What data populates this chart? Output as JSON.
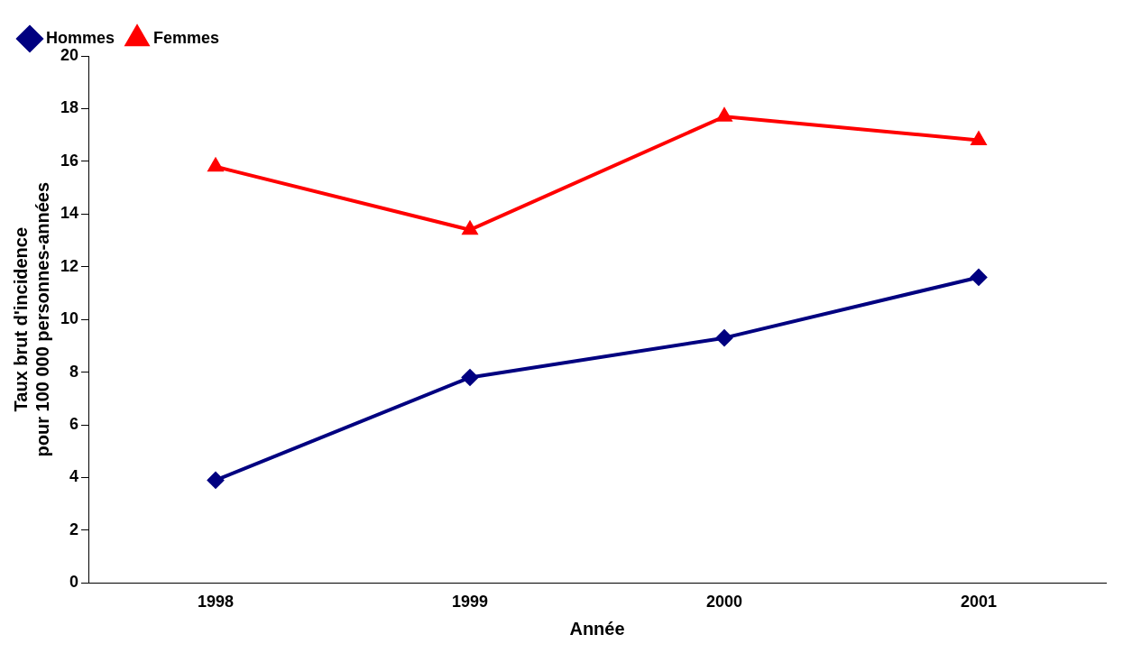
{
  "chart_data": {
    "type": "line",
    "xlabel": "Année",
    "ylabel": "Taux brut d'incidence\npour 100 000 personnes-années",
    "categories": [
      "1998",
      "1999",
      "2000",
      "2001"
    ],
    "series": [
      {
        "name": "Hommes",
        "color": "#000080",
        "values": [
          3.9,
          7.8,
          9.3,
          11.6
        ],
        "marker": "diamond"
      },
      {
        "name": "Femmes",
        "color": "#ff0000",
        "values": [
          15.8,
          13.4,
          17.7,
          16.8
        ],
        "marker": "triangle"
      }
    ],
    "ylim": [
      0,
      20
    ],
    "yticks": [
      0,
      2,
      4,
      6,
      8,
      10,
      12,
      14,
      16,
      18,
      20
    ],
    "grid": false,
    "legend": "top left",
    "line_style": "solid"
  }
}
